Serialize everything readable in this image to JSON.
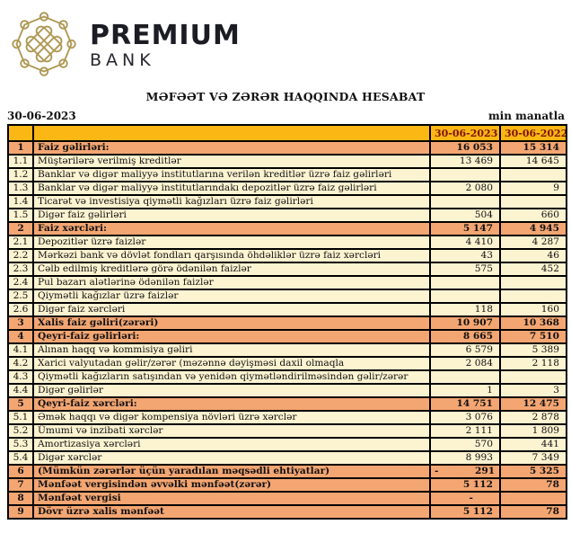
{
  "brand": {
    "name": "PREMIUM",
    "subname": "BANK",
    "logo_icon": "knot-emblem",
    "gold": "#AE9752"
  },
  "report": {
    "title": "MƏFƏƏT VƏ ZƏRƏR HAQQINDA HESABAT",
    "date": "30-06-2023",
    "unit": "min manatla"
  },
  "table": {
    "columns": [
      "30-06-2023",
      "30-06-2022"
    ],
    "colors": {
      "header_bg": "#FBB713",
      "header_text": "#7D1407",
      "section_bg": "#F4A672",
      "detail_bg": "#FCF3D1",
      "border": "#000000"
    },
    "rows": [
      {
        "num": "1",
        "label": "Faiz gəlirləri:",
        "v2023": "16 053",
        "v2022": "15 314",
        "type": "section"
      },
      {
        "num": "1.1",
        "label": "Müştərilərə verilmiş kreditlər",
        "v2023": "13 469",
        "v2022": "14 645",
        "type": "detail"
      },
      {
        "num": "1.2",
        "label": "Banklar və digər maliyyə institutlarına verilən kreditlər üzrə faiz gəlirləri",
        "v2023": "",
        "v2022": "",
        "type": "detail"
      },
      {
        "num": "1.3",
        "label": "Banklar və digər maliyyə institutlarındakı depozitlər üzrə faiz gəlirləri",
        "v2023": "2 080",
        "v2022": "9",
        "type": "detail"
      },
      {
        "num": "1.4",
        "label": "Ticarət və investisiya qiymətli kağızları üzrə faiz gəlirləri",
        "v2023": "",
        "v2022": "",
        "type": "detail"
      },
      {
        "num": "1.5",
        "label": "Digər faiz gəlirləri",
        "v2023": "504",
        "v2022": "660",
        "type": "detail"
      },
      {
        "num": "2",
        "label": "Faiz xərcləri:",
        "v2023": "5 147",
        "v2022": "4 945",
        "type": "section"
      },
      {
        "num": "2.1",
        "label": "Depozitlər üzrə faizlər",
        "v2023": "4 410",
        "v2022": "4 287",
        "type": "detail"
      },
      {
        "num": "2.2",
        "label": "Mərkəzi bank və dövlət fondları qarşısında öhdəliklər üzrə faiz xərcləri",
        "v2023": "43",
        "v2022": "46",
        "type": "detail"
      },
      {
        "num": "2.3",
        "label": "Cəlb edilmiş kreditlərə görə ödənilən faizlər",
        "v2023": "575",
        "v2022": "452",
        "type": "detail"
      },
      {
        "num": "2.4",
        "label": "Pul bazarı alətlərinə ödənilən faizlər",
        "v2023": "",
        "v2022": "",
        "type": "detail"
      },
      {
        "num": "2.5",
        "label": "Qiymətli kağızlar üzrə faizlər",
        "v2023": "",
        "v2022": "",
        "type": "detail"
      },
      {
        "num": "2.6",
        "label": "Digər faiz xərcləri",
        "v2023": "118",
        "v2022": "160",
        "type": "detail"
      },
      {
        "num": "3",
        "label": "Xalis faiz gəliri(zərəri)",
        "v2023": "10 907",
        "v2022": "10 368",
        "type": "section"
      },
      {
        "num": "4",
        "label": "Qeyri-faiz gəlirləri:",
        "v2023": "8 665",
        "v2022": "7 510",
        "type": "section"
      },
      {
        "num": "4.1",
        "label": "Alınan haqq və kommisiya gəliri",
        "v2023": "6 579",
        "v2022": "5 389",
        "type": "detail"
      },
      {
        "num": "4.2",
        "label": "Xarici valyutadan gəlir/zərər (məzənnə dəyişməsi daxil olmaqla",
        "v2023": "2 084",
        "v2022": "2 118",
        "type": "detail"
      },
      {
        "num": "4.3",
        "label": "Qiymətli kağızların satışından və yenidən qiymətləndirilməsindən gəlir/zərər",
        "v2023": "",
        "v2022": "",
        "type": "detail"
      },
      {
        "num": "4.4",
        "label": "Digər gəlirlər",
        "v2023": "1",
        "v2022": "3",
        "type": "detail"
      },
      {
        "num": "5",
        "label": "Qeyri-faiz xərcləri:",
        "v2023": "14 751",
        "v2022": "12 475",
        "type": "section"
      },
      {
        "num": "5.1",
        "label": "Əmək haqqı və digər kompensiya növləri üzrə xərclər",
        "v2023": "3 076",
        "v2022": "2 878",
        "type": "detail"
      },
      {
        "num": "5.2",
        "label": "Ümumi və inzibati xərclər",
        "v2023": "2 111",
        "v2022": "1 809",
        "type": "detail"
      },
      {
        "num": "5.3",
        "label": "Amortizasiya xərcləri",
        "v2023": "570",
        "v2022": "441",
        "type": "detail"
      },
      {
        "num": "5.4",
        "label": "Digər xərclər",
        "v2023": "8 993",
        "v2022": "7 349",
        "type": "detail"
      },
      {
        "num": "6",
        "label": "(Mümkün zərərlər üçün yaradılan məqsədli ehtiyatlar)",
        "v2023": "-           291",
        "v2022": "5 325",
        "type": "section"
      },
      {
        "num": "7",
        "label": "Mənfəət vergisindən əvvəlki mənfəət(zərər)",
        "v2023": "5 112",
        "v2022": "78",
        "type": "section"
      },
      {
        "num": "8",
        "label": "Mənfəət vergisi",
        "v2023": "-      ",
        "v2022": "",
        "type": "section"
      },
      {
        "num": "9",
        "label": "Dövr üzrə xalis mənfəət",
        "v2023": "5 112",
        "v2022": "78",
        "type": "section"
      }
    ]
  }
}
